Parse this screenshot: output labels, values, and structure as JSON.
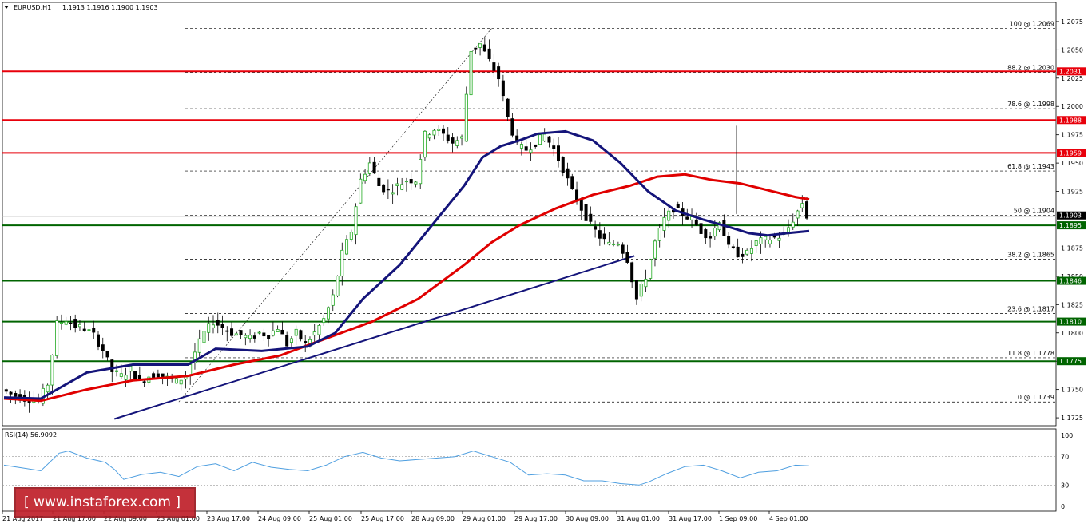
{
  "header": {
    "symbol_label": "EURUSD,H1",
    "ohlc": "1.1913 1.1916 1.1900 1.1903",
    "rsi_label": "RSI(14) 56.9092"
  },
  "watermark": {
    "text": "[ www.instaforex.com ]"
  },
  "colors": {
    "resistance": "#e8000b",
    "support": "#006400",
    "ma_fast": "#14147a",
    "ma_slow": "#e00000",
    "trendline": "#14147a",
    "rsi_line": "#4f9fe0",
    "bull_candle": "#22aa22",
    "bear_candle": "#000000",
    "price_tag_bg": "#000000"
  },
  "chart_data": {
    "type": "candlestick",
    "symbol": "EURUSD",
    "timeframe": "H1",
    "ylim": [
      1.1718,
      1.2082
    ],
    "y_ticks": [
      "1.2075",
      "1.2050",
      "1.2025",
      "1.2000",
      "1.1975",
      "1.1950",
      "1.1925",
      "1.1875",
      "1.1850",
      "1.1825",
      "1.1800",
      "1.1775",
      "1.1750",
      "1.1725"
    ],
    "x_ticks": [
      "21 Aug 2017",
      "21 Aug 17:00",
      "22 Aug 09:00",
      "23 Aug 01:00",
      "23 Aug 17:00",
      "24 Aug 09:00",
      "25 Aug 01:00",
      "25 Aug 17:00",
      "28 Aug 09:00",
      "29 Aug 01:00",
      "29 Aug 17:00",
      "30 Aug 09:00",
      "31 Aug 01:00",
      "31 Aug 17:00",
      "1 Sep 09:00",
      "4 Sep 01:00"
    ],
    "fibonacci": [
      {
        "label": "100 @ 1.2069",
        "price": 1.2069
      },
      {
        "label": "88.2 @ 1.2030",
        "price": 1.203
      },
      {
        "label": "78.6 @ 1.1998",
        "price": 1.1998
      },
      {
        "label": "61.8 @ 1.1943",
        "price": 1.1943
      },
      {
        "label": "50 @ 1.1904",
        "price": 1.1904
      },
      {
        "label": "38.2 @ 1.1865",
        "price": 1.1865
      },
      {
        "label": "23.6 @ 1.1817",
        "price": 1.1817
      },
      {
        "label": "11.8 @ 1.1778",
        "price": 1.1778
      },
      {
        "label": "0 @ 1.1739",
        "price": 1.1739
      }
    ],
    "resistance_levels": [
      {
        "label": "1.2031",
        "price": 1.2031
      },
      {
        "label": "1.1988",
        "price": 1.1988
      },
      {
        "label": "1.1959",
        "price": 1.1959
      }
    ],
    "support_levels": [
      {
        "label": "1.1895",
        "price": 1.1895
      },
      {
        "label": "1.1846",
        "price": 1.1846
      },
      {
        "label": "1.1810",
        "price": 1.181
      },
      {
        "label": "1.1775",
        "price": 1.1775
      }
    ],
    "current_price": {
      "label": "1.1903",
      "price": 1.1903
    },
    "price_path": [
      [
        0,
        1.175
      ],
      [
        2,
        1.1746
      ],
      [
        5,
        1.1742
      ],
      [
        8,
        1.174
      ],
      [
        10,
        1.1755
      ],
      [
        12,
        1.1808
      ],
      [
        14,
        1.1812
      ],
      [
        16,
        1.1806
      ],
      [
        18,
        1.1804
      ],
      [
        20,
        1.1798
      ],
      [
        22,
        1.1785
      ],
      [
        24,
        1.1766
      ],
      [
        26,
        1.1762
      ],
      [
        28,
        1.1768
      ],
      [
        30,
        1.1757
      ],
      [
        32,
        1.1762
      ],
      [
        34,
        1.1764
      ],
      [
        36,
        1.176
      ],
      [
        38,
        1.1757
      ],
      [
        40,
        1.1762
      ],
      [
        42,
        1.1783
      ],
      [
        44,
        1.18
      ],
      [
        46,
        1.181
      ],
      [
        48,
        1.1805
      ],
      [
        50,
        1.18
      ],
      [
        52,
        1.1798
      ],
      [
        54,
        1.1795
      ],
      [
        56,
        1.18
      ],
      [
        58,
        1.1798
      ],
      [
        60,
        1.1805
      ],
      [
        62,
        1.179
      ],
      [
        64,
        1.18
      ],
      [
        66,
        1.179
      ],
      [
        68,
        1.18
      ],
      [
        70,
        1.1812
      ],
      [
        72,
        1.1832
      ],
      [
        74,
        1.187
      ],
      [
        76,
        1.189
      ],
      [
        78,
        1.1935
      ],
      [
        80,
        1.195
      ],
      [
        82,
        1.193
      ],
      [
        84,
        1.1925
      ],
      [
        86,
        1.193
      ],
      [
        88,
        1.1935
      ],
      [
        90,
        1.1935
      ],
      [
        92,
        1.1975
      ],
      [
        94,
        1.198
      ],
      [
        96,
        1.1975
      ],
      [
        98,
        1.1968
      ],
      [
        100,
        1.1972
      ],
      [
        102,
        1.205
      ],
      [
        104,
        1.2055
      ],
      [
        106,
        1.204
      ],
      [
        108,
        1.2025
      ],
      [
        110,
        1.199
      ],
      [
        112,
        1.1965
      ],
      [
        114,
        1.1962
      ],
      [
        116,
        1.1968
      ],
      [
        118,
        1.1975
      ],
      [
        120,
        1.1962
      ],
      [
        122,
        1.1945
      ],
      [
        124,
        1.1925
      ],
      [
        126,
        1.191
      ],
      [
        128,
        1.1895
      ],
      [
        130,
        1.1885
      ],
      [
        132,
        1.1878
      ],
      [
        134,
        1.188
      ],
      [
        136,
        1.1865
      ],
      [
        138,
        1.183
      ],
      [
        140,
        1.185
      ],
      [
        142,
        1.188
      ],
      [
        144,
        1.19
      ],
      [
        146,
        1.191
      ],
      [
        148,
        1.1905
      ],
      [
        150,
        1.19
      ],
      [
        152,
        1.189
      ],
      [
        154,
        1.1885
      ],
      [
        156,
        1.19
      ],
      [
        158,
        1.1875
      ],
      [
        160,
        1.187
      ],
      [
        162,
        1.187
      ],
      [
        164,
        1.188
      ],
      [
        166,
        1.1882
      ],
      [
        168,
        1.1884
      ],
      [
        170,
        1.1886
      ],
      [
        172,
        1.19
      ],
      [
        174,
        1.1915
      ],
      [
        175,
        1.1903
      ]
    ],
    "ma_fast_path": [
      [
        0,
        1.1743
      ],
      [
        8,
        1.1742
      ],
      [
        18,
        1.1765
      ],
      [
        28,
        1.1772
      ],
      [
        40,
        1.1772
      ],
      [
        46,
        1.1786
      ],
      [
        56,
        1.1784
      ],
      [
        66,
        1.1788
      ],
      [
        72,
        1.18
      ],
      [
        78,
        1.183
      ],
      [
        86,
        1.186
      ],
      [
        94,
        1.19
      ],
      [
        100,
        1.193
      ],
      [
        104,
        1.1955
      ],
      [
        108,
        1.1965
      ],
      [
        112,
        1.197
      ],
      [
        116,
        1.1976
      ],
      [
        122,
        1.1978
      ],
      [
        128,
        1.197
      ],
      [
        134,
        1.195
      ],
      [
        140,
        1.1925
      ],
      [
        146,
        1.1908
      ],
      [
        152,
        1.19
      ],
      [
        158,
        1.1893
      ],
      [
        162,
        1.1888
      ],
      [
        166,
        1.1886
      ],
      [
        170,
        1.1888
      ],
      [
        175,
        1.189
      ]
    ],
    "ma_slow_path": [
      [
        0,
        1.1742
      ],
      [
        8,
        1.174
      ],
      [
        18,
        1.175
      ],
      [
        28,
        1.1758
      ],
      [
        40,
        1.1762
      ],
      [
        50,
        1.1772
      ],
      [
        60,
        1.178
      ],
      [
        70,
        1.1795
      ],
      [
        80,
        1.181
      ],
      [
        90,
        1.183
      ],
      [
        100,
        1.186
      ],
      [
        106,
        1.188
      ],
      [
        112,
        1.1895
      ],
      [
        120,
        1.191
      ],
      [
        128,
        1.1922
      ],
      [
        136,
        1.193
      ],
      [
        142,
        1.1938
      ],
      [
        148,
        1.194
      ],
      [
        154,
        1.1935
      ],
      [
        160,
        1.1932
      ],
      [
        166,
        1.1926
      ],
      [
        172,
        1.192
      ],
      [
        175,
        1.1918
      ]
    ],
    "trendline": {
      "from": [
        24,
        1.1724
      ],
      "to": [
        137,
        1.1868
      ]
    },
    "fib_anchor_line": {
      "from": [
        38,
        1.1739
      ],
      "to": [
        106,
        1.2069
      ]
    },
    "rsi": {
      "label": "RSI(14) 56.9092",
      "value": 56.9092,
      "levels": [
        70,
        30
      ],
      "y_ticks": [
        "100",
        "70",
        "30",
        "0"
      ],
      "path": [
        [
          0,
          58
        ],
        [
          4,
          54
        ],
        [
          8,
          50
        ],
        [
          12,
          75
        ],
        [
          14,
          78
        ],
        [
          18,
          68
        ],
        [
          22,
          62
        ],
        [
          24,
          52
        ],
        [
          26,
          38
        ],
        [
          30,
          45
        ],
        [
          34,
          48
        ],
        [
          38,
          42
        ],
        [
          42,
          56
        ],
        [
          46,
          60
        ],
        [
          50,
          50
        ],
        [
          54,
          62
        ],
        [
          58,
          55
        ],
        [
          62,
          52
        ],
        [
          66,
          50
        ],
        [
          70,
          58
        ],
        [
          74,
          70
        ],
        [
          78,
          76
        ],
        [
          82,
          68
        ],
        [
          86,
          64
        ],
        [
          90,
          66
        ],
        [
          94,
          68
        ],
        [
          98,
          70
        ],
        [
          102,
          78
        ],
        [
          106,
          70
        ],
        [
          110,
          62
        ],
        [
          114,
          44
        ],
        [
          118,
          46
        ],
        [
          122,
          44
        ],
        [
          126,
          36
        ],
        [
          130,
          36
        ],
        [
          134,
          32
        ],
        [
          138,
          30
        ],
        [
          140,
          34
        ],
        [
          144,
          46
        ],
        [
          148,
          56
        ],
        [
          152,
          58
        ],
        [
          156,
          50
        ],
        [
          160,
          40
        ],
        [
          164,
          48
        ],
        [
          168,
          50
        ],
        [
          172,
          58
        ],
        [
          175,
          57
        ]
      ]
    }
  }
}
